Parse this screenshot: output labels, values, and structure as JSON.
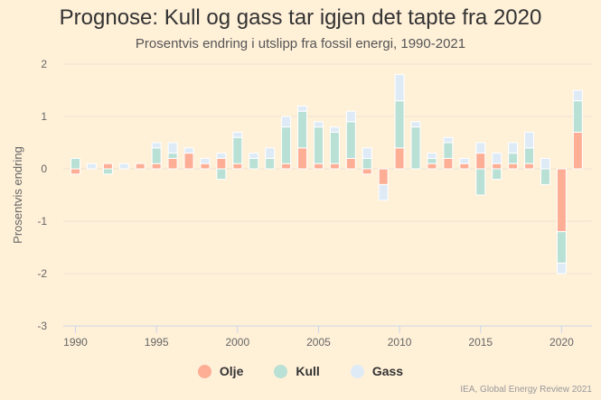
{
  "chart_data": {
    "type": "bar",
    "stacked": true,
    "title": "Prognose: Kull og gass tar igjen det tapte fra 2020",
    "subtitle": "Prosentvis endring i utslipp fra fossil energi, 1990-2021",
    "xlabel": "",
    "ylabel": "Prosentvis endring",
    "ylim": [
      -3,
      2
    ],
    "yticks": [
      "-3",
      "-2",
      "-1",
      "0",
      "1",
      "2"
    ],
    "xticks": [
      "1990",
      "1995",
      "2000",
      "2005",
      "2010",
      "2015",
      "2020"
    ],
    "grid": true,
    "legend_position": "bottom",
    "categories": [
      1990,
      1991,
      1992,
      1993,
      1994,
      1995,
      1996,
      1997,
      1998,
      1999,
      2000,
      2001,
      2002,
      2003,
      2004,
      2005,
      2006,
      2007,
      2008,
      2009,
      2010,
      2011,
      2012,
      2013,
      2014,
      2015,
      2016,
      2017,
      2018,
      2019,
      2020,
      2021
    ],
    "series": [
      {
        "name": "Olje",
        "color": "#fdae95",
        "values": [
          -0.1,
          0,
          0.1,
          0,
          0.1,
          0.1,
          0.2,
          0.3,
          0.1,
          0.2,
          0.1,
          0,
          0,
          0.1,
          0.4,
          0.1,
          0.1,
          0.2,
          -0.1,
          -0.3,
          0.4,
          0,
          0.1,
          0.2,
          0.1,
          0.3,
          0.1,
          0.1,
          0.1,
          0,
          -1.2,
          0.7
        ]
      },
      {
        "name": "Kull",
        "color": "#b9e0d5",
        "values": [
          0.2,
          0,
          -0.1,
          0,
          0,
          0.3,
          0.1,
          0,
          0,
          -0.2,
          0.5,
          0.2,
          0.2,
          0.7,
          0.7,
          0.7,
          0.6,
          0.7,
          0.2,
          0,
          0.9,
          0.8,
          0.1,
          0.3,
          0,
          -0.5,
          -0.2,
          0.2,
          0.3,
          -0.3,
          -0.6,
          0.6
        ]
      },
      {
        "name": "Gass",
        "color": "#deebf7",
        "values": [
          0,
          0.1,
          0,
          0.1,
          0,
          0.1,
          0.2,
          0.1,
          0.1,
          0.1,
          0.1,
          0.1,
          0.2,
          0.2,
          0.1,
          0.1,
          0.1,
          0.2,
          0.2,
          -0.3,
          0.5,
          0.1,
          0.1,
          0.1,
          0.1,
          0.2,
          0.2,
          0.2,
          0.3,
          0.2,
          -0.2,
          0.2
        ]
      }
    ],
    "source": "IEA, Global Energy Review 2021"
  }
}
